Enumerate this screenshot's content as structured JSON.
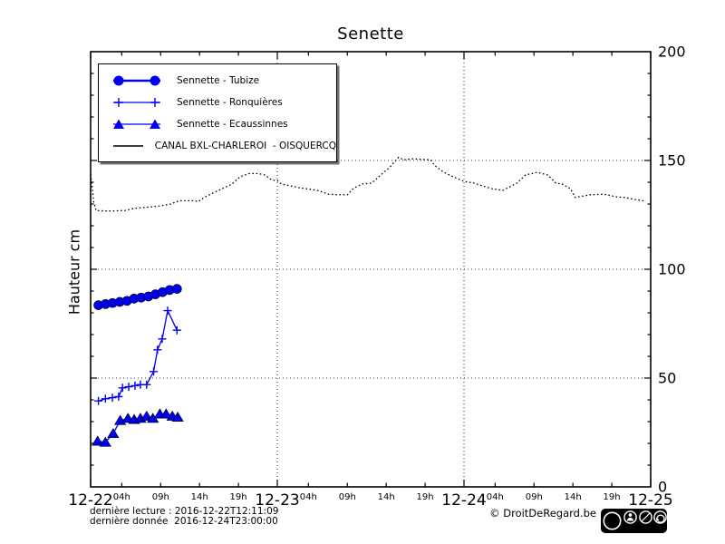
{
  "title": "Senette",
  "ylabel": "Hauteur cm",
  "colors": {
    "series_blue": "#0000ee",
    "line_black": "#000000",
    "background": "#ffffff"
  },
  "legend": {
    "items": [
      {
        "label": "Sennette - Tubize",
        "marker": "circle"
      },
      {
        "label": "Sennette - Ronquières",
        "marker": "plus"
      },
      {
        "label": "Sennette - Ecaussinnes",
        "marker": "triangle"
      },
      {
        "label": "CANAL BXL-CHARLEROI  - OISQUERCQ",
        "marker": "line"
      }
    ]
  },
  "footer": {
    "line1": "dernière lecture : 2016-12-22T12:11:09",
    "line2": "dernière donnée  2016-12-24T23:00:00",
    "copyright": "© DroitDeRegard.be",
    "cc_text": "cc",
    "license_labels": [
      "BY",
      "NC",
      "SA"
    ]
  },
  "chart_data": {
    "type": "line",
    "title": "Senette",
    "xlabel": "",
    "ylabel": "Hauteur cm",
    "ylim": [
      0,
      200
    ],
    "y_ticks": [
      0,
      50,
      100,
      150,
      200
    ],
    "grid": true,
    "legend_position": "upper left",
    "x_axis": {
      "unit": "hours since 2016-12-22 00:00",
      "range": [
        0,
        72
      ],
      "day_ticks": [
        {
          "h": 0,
          "label": "12-22"
        },
        {
          "h": 24,
          "label": "12-23"
        },
        {
          "h": 48,
          "label": "12-24"
        },
        {
          "h": 72,
          "label": "12-25"
        }
      ],
      "hour_ticks": [
        4,
        9,
        14,
        19,
        28,
        33,
        38,
        43,
        52,
        57,
        62,
        67
      ],
      "hour_labels": [
        "04h",
        "09h",
        "14h",
        "19h",
        "04h",
        "09h",
        "14h",
        "19h",
        "04h",
        "09h",
        "14h",
        "19h"
      ]
    },
    "grid_x_hours": [
      24,
      48
    ],
    "grid_y_values": [
      50,
      100,
      150
    ],
    "series": [
      {
        "id": "canal",
        "name": "CANAL BXL-CHARLEROI  - OISQUERCQ",
        "color": "#000000",
        "marker": "none",
        "line": "dotted",
        "x": [
          0,
          0.2,
          0.4,
          0.7,
          2,
          3,
          4.4,
          5.6,
          7.2,
          8.7,
          10.3,
          11.4,
          13.4,
          13.8,
          14.6,
          15.7,
          16.9,
          18.1,
          19.2,
          20.4,
          21.6,
          22.4,
          23.3,
          24,
          24.5,
          26.8,
          29.1,
          30.6,
          31.5,
          33,
          33.8,
          35,
          36.1,
          37.3,
          38.4,
          39.6,
          40.2,
          41.4,
          43.7,
          44.3,
          45.4,
          46.6,
          48,
          49.3,
          50.4,
          51.6,
          53,
          54.8,
          55.9,
          57.4,
          58.8,
          59.8,
          60.6,
          61.7,
          62.3,
          64.1,
          66,
          67.6,
          68.7,
          69.9,
          71.4
        ],
        "y": [
          143.5,
          138,
          131,
          127,
          126.8,
          126.8,
          127,
          128,
          128.5,
          129,
          130,
          131.5,
          131.5,
          131,
          133,
          135,
          137,
          139,
          142.5,
          144,
          144,
          143.3,
          141,
          140.8,
          139.2,
          137.5,
          136.3,
          134.5,
          134.3,
          134.2,
          137.3,
          139.2,
          139.6,
          143.3,
          146.7,
          151.5,
          150.3,
          150.8,
          150.3,
          147.5,
          144.6,
          142.5,
          140.4,
          139.6,
          138.3,
          137,
          136.3,
          139.6,
          143.3,
          144.6,
          143.3,
          139.6,
          139.2,
          137,
          133,
          134.2,
          134.5,
          133.3,
          133,
          132.1,
          131.3
        ]
      },
      {
        "id": "tubize",
        "name": "Sennette - Tubize",
        "color": "#0000ee",
        "marker": "circle",
        "line": "solid",
        "x": [
          1,
          1.92,
          2.83,
          3.75,
          4.67,
          5.58,
          6.5,
          7.42,
          8.33,
          9.25,
          10.17,
          11.1
        ],
        "y": [
          83.5,
          84,
          84.5,
          85,
          85.5,
          86.5,
          87,
          87.5,
          88.5,
          89.5,
          90.5,
          91
        ]
      },
      {
        "id": "ronquieres",
        "name": "Sennette - Ronquières",
        "color": "#0000ee",
        "marker": "plus",
        "line": "solid",
        "x": [
          1,
          1.9,
          2.8,
          3.6,
          4.1,
          4.9,
          5.7,
          6.4,
          7.2,
          8.1,
          8.6,
          9.2,
          9.9,
          11.1
        ],
        "y": [
          39.5,
          40.5,
          41,
          41.5,
          45.5,
          46,
          46.5,
          47,
          47,
          53,
          63,
          68,
          81,
          72
        ]
      },
      {
        "id": "ecaussinnes",
        "name": "Sennette - Ecaussinnes",
        "color": "#0000ee",
        "marker": "triangle",
        "line": "solid",
        "x": [
          0.9,
          1.9,
          2.9,
          3.8,
          4.8,
          5.6,
          6.4,
          7.2,
          8.0,
          8.9,
          9.7,
          10.5,
          11.2
        ],
        "y": [
          21,
          20.5,
          24.5,
          30.5,
          31.5,
          31,
          31.5,
          32.5,
          31.5,
          33.5,
          33.5,
          32.5,
          32
        ]
      }
    ]
  }
}
